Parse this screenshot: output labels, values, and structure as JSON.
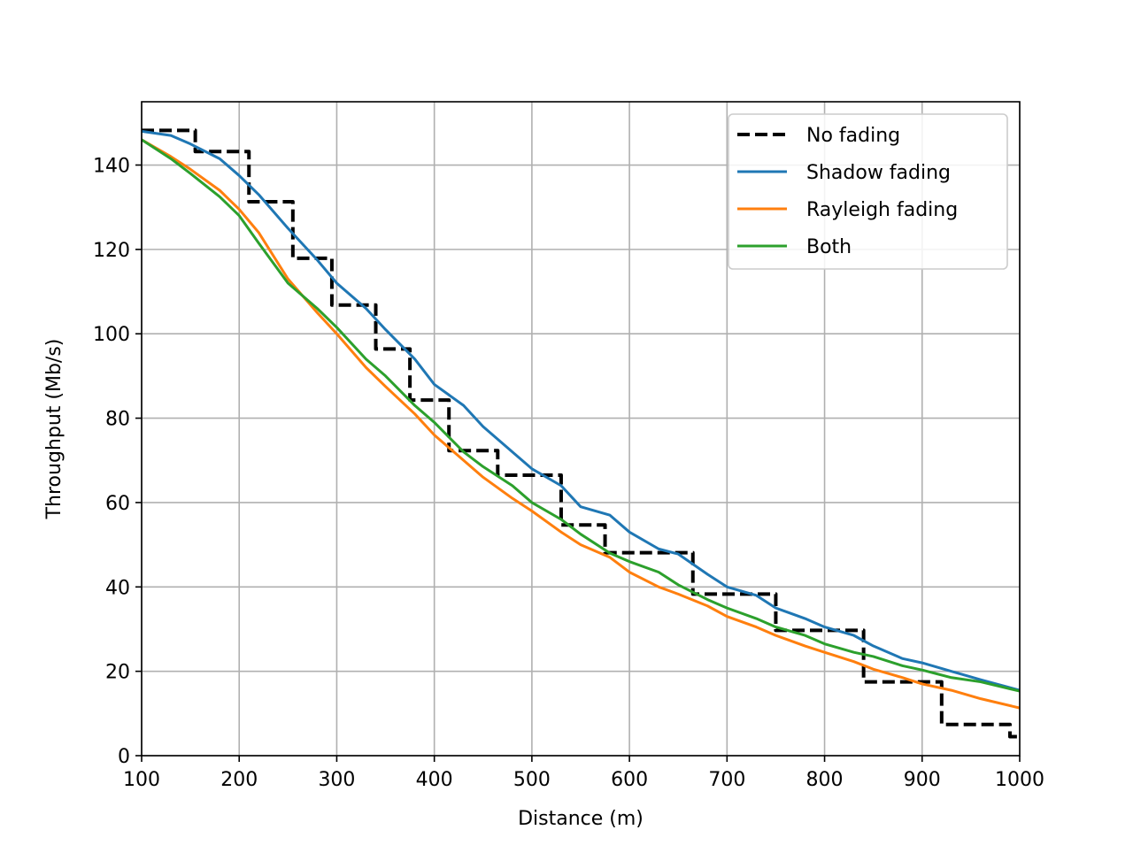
{
  "chart_data": {
    "type": "line",
    "title": "",
    "xlabel": "Distance (m)",
    "ylabel": "Throughput (Mb/s)",
    "xlim": [
      100,
      1000
    ],
    "ylim": [
      0,
      155
    ],
    "xticks": [
      100,
      200,
      300,
      400,
      500,
      600,
      700,
      800,
      900,
      1000
    ],
    "yticks": [
      0,
      20,
      40,
      60,
      80,
      100,
      120,
      140
    ],
    "grid": true,
    "legend_position": "top-right",
    "series": [
      {
        "name": "No fading",
        "color": "#000000",
        "style": "dashed",
        "step": true,
        "x": [
          100,
          155,
          210,
          255,
          295,
          340,
          375,
          415,
          465,
          530,
          575,
          665,
          750,
          840,
          920,
          990,
          1000
        ],
        "y": [
          148.2,
          143.2,
          131.3,
          117.9,
          106.8,
          96.4,
          84.3,
          72.3,
          66.5,
          54.7,
          48.1,
          38.3,
          29.7,
          17.5,
          7.4,
          4.5,
          4.5
        ]
      },
      {
        "name": "Shadow fading",
        "color": "#1f77b4",
        "style": "solid",
        "x": [
          100,
          130,
          150,
          180,
          200,
          220,
          250,
          280,
          300,
          330,
          350,
          380,
          400,
          430,
          450,
          480,
          500,
          530,
          550,
          580,
          600,
          630,
          650,
          680,
          700,
          730,
          750,
          780,
          800,
          830,
          850,
          880,
          900,
          930,
          960,
          1000
        ],
        "y": [
          148,
          147,
          145,
          141.5,
          137.5,
          133,
          125,
          117.5,
          112,
          106,
          101,
          94,
          88,
          83,
          78,
          72,
          68,
          64,
          59,
          57,
          53,
          49,
          47.8,
          43,
          40,
          38,
          35,
          32.5,
          30.5,
          28.5,
          26,
          23,
          22,
          20,
          18,
          15.5
        ]
      },
      {
        "name": "Rayleigh fading",
        "color": "#ff7f0e",
        "style": "solid",
        "x": [
          100,
          130,
          150,
          180,
          200,
          220,
          250,
          280,
          300,
          330,
          350,
          380,
          400,
          430,
          450,
          480,
          500,
          530,
          550,
          580,
          600,
          630,
          650,
          680,
          700,
          730,
          750,
          780,
          800,
          830,
          850,
          880,
          900,
          930,
          960,
          1000
        ],
        "y": [
          146,
          142,
          139,
          134,
          129.5,
          124,
          113,
          105,
          100,
          92,
          87.5,
          81,
          76,
          70,
          66,
          61,
          58,
          53,
          50,
          47,
          43.5,
          40,
          38.3,
          35.5,
          33,
          30.5,
          28.5,
          26,
          24.5,
          22.3,
          20.5,
          18.5,
          17,
          15.5,
          13.5,
          11.3
        ]
      },
      {
        "name": "Both",
        "color": "#2ca02c",
        "style": "solid",
        "x": [
          100,
          130,
          150,
          180,
          200,
          220,
          250,
          280,
          300,
          330,
          350,
          380,
          400,
          430,
          450,
          480,
          500,
          530,
          550,
          580,
          600,
          630,
          650,
          680,
          700,
          730,
          750,
          780,
          800,
          830,
          850,
          880,
          900,
          930,
          960,
          1000
        ],
        "y": [
          146,
          141.5,
          138,
          132.5,
          128,
          121.5,
          112,
          106,
          101.5,
          94,
          90,
          83,
          79,
          72,
          68.5,
          64,
          60,
          56,
          52.5,
          48,
          46,
          43.5,
          40.5,
          37,
          35,
          32.5,
          30.5,
          28.5,
          26.5,
          24.5,
          23.5,
          21.3,
          20.3,
          18.5,
          17.5,
          15.3
        ]
      }
    ]
  }
}
